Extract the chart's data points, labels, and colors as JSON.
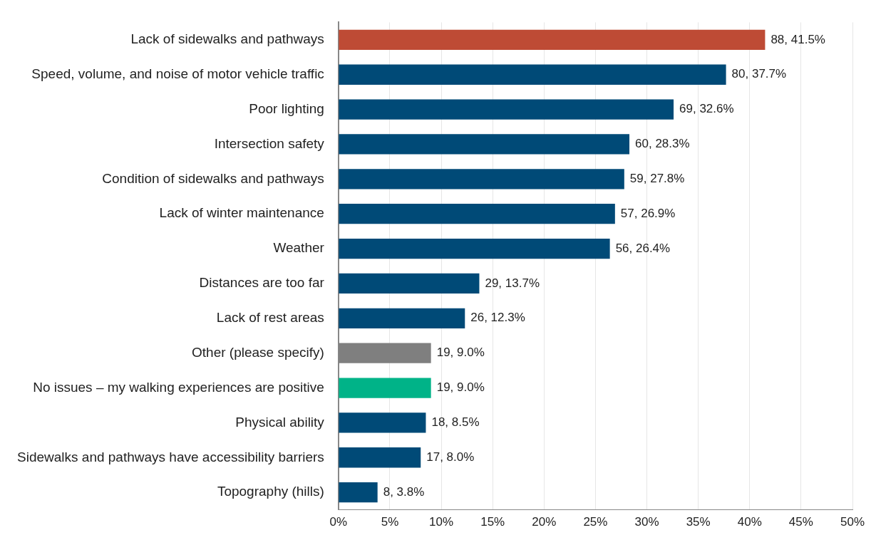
{
  "chart_data": {
    "type": "bar",
    "orientation": "horizontal",
    "categories": [
      "Lack of sidewalks and pathways",
      "Speed, volume, and noise of motor vehicle traffic",
      "Poor lighting",
      "Intersection safety",
      "Condition of sidewalks and pathways",
      "Lack of winter maintenance",
      "Weather",
      "Distances are too far",
      "Lack of rest areas",
      "Other (please specify)",
      "No issues – my walking experiences are positive",
      "Physical ability",
      "Sidewalks and pathways have accessibility barriers",
      "Topography (hills)"
    ],
    "values": [
      41.5,
      37.7,
      32.6,
      28.3,
      27.8,
      26.9,
      26.4,
      13.7,
      12.3,
      9.0,
      9.0,
      8.5,
      8.0,
      3.8
    ],
    "value_labels": [
      "88, 41.5%",
      "80, 37.7%",
      "69, 32.6%",
      "60, 28.3%",
      "59, 27.8%",
      "57, 26.9%",
      "56, 26.4%",
      "29, 13.7%",
      "26, 12.3%",
      "19, 9.0%",
      "19, 9.0%",
      "18, 8.5%",
      "17, 8.0%",
      "8, 3.8%"
    ],
    "colors": [
      "#be4b35",
      "#004a77",
      "#004a77",
      "#004a77",
      "#004a77",
      "#004a77",
      "#004a77",
      "#004a77",
      "#004a77",
      "#7f7f7f",
      "#00b388",
      "#004a77",
      "#004a77",
      "#004a77"
    ],
    "xlim": [
      0,
      50
    ],
    "xticks": [
      {
        "value": 0,
        "label": "0%"
      },
      {
        "value": 5,
        "label": "5%"
      },
      {
        "value": 10,
        "label": "10%"
      },
      {
        "value": 15,
        "label": "15%"
      },
      {
        "value": 20,
        "label": "20%"
      },
      {
        "value": 25,
        "label": "25%"
      },
      {
        "value": 30,
        "label": "30%"
      },
      {
        "value": 35,
        "label": "35%"
      },
      {
        "value": 40,
        "label": "40%"
      },
      {
        "value": 45,
        "label": "45%"
      },
      {
        "value": 50,
        "label": "50%"
      }
    ],
    "grid": "x"
  }
}
